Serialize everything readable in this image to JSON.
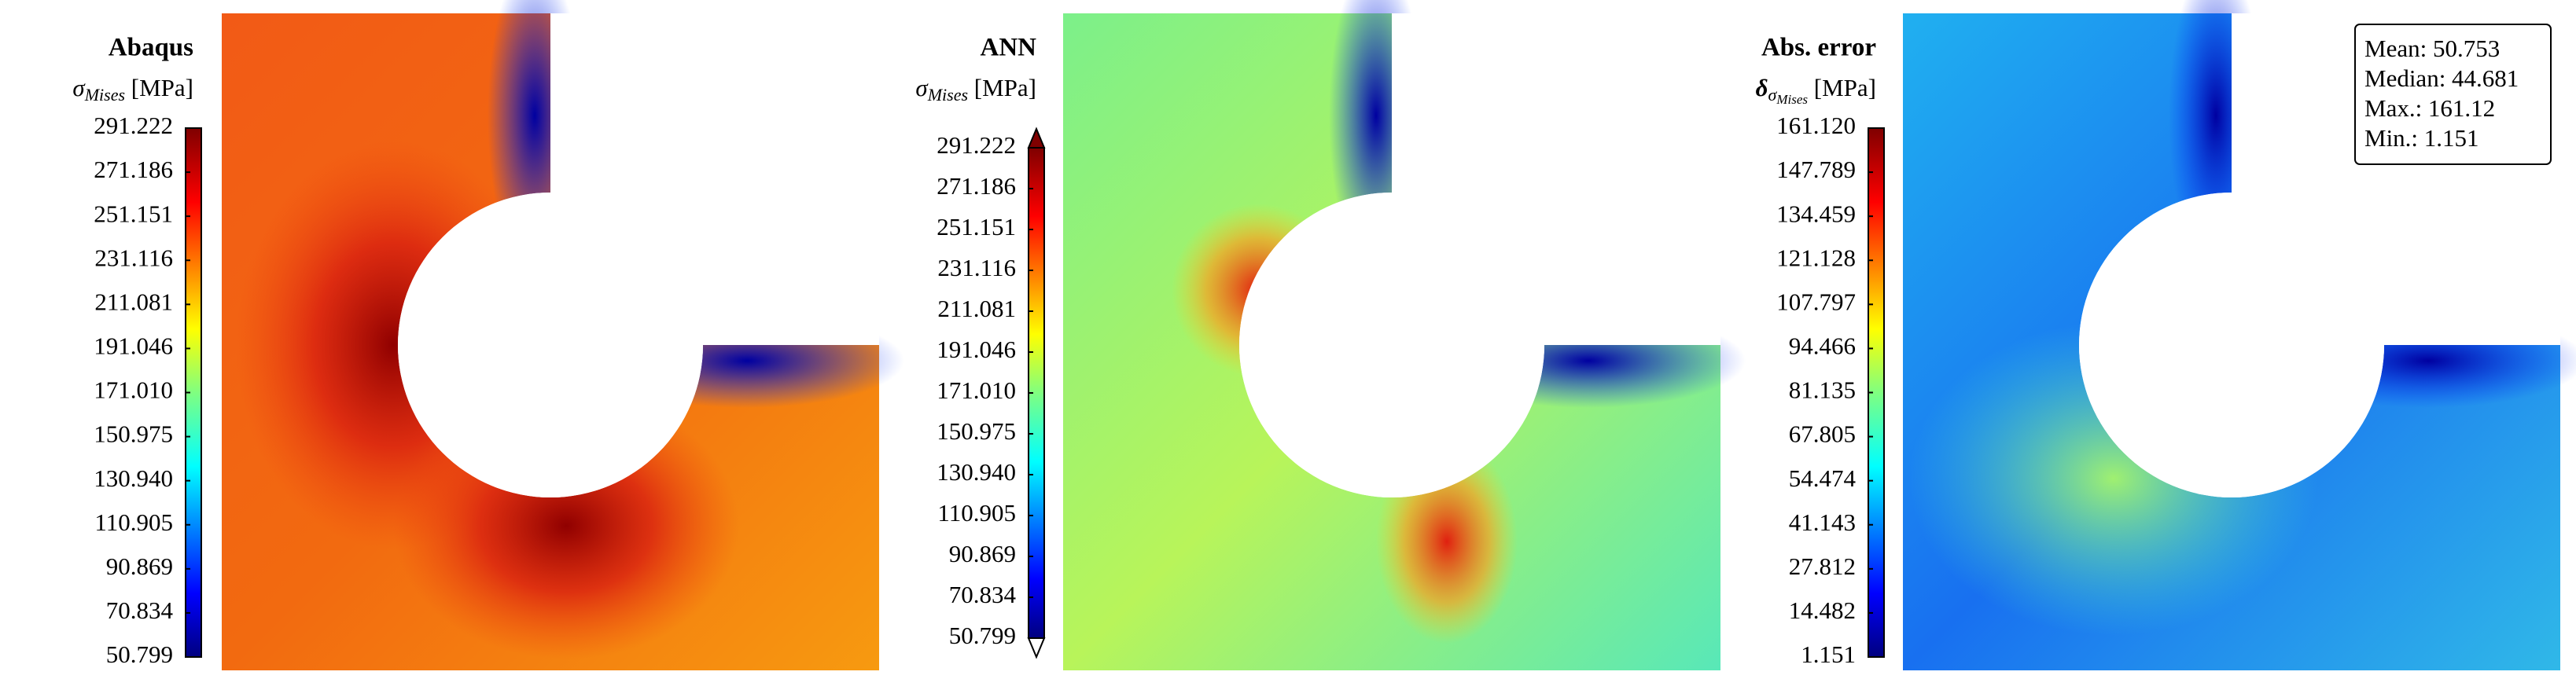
{
  "panels": [
    {
      "title": "Abaqus",
      "label": {
        "symbol": "σ",
        "subscript": "Mises",
        "unit": "[MPa]"
      },
      "ticks": [
        "291.222",
        "271.186",
        "251.151",
        "231.116",
        "211.081",
        "191.046",
        "171.010",
        "150.975",
        "130.940",
        "110.905",
        "90.869",
        "70.834",
        "50.799"
      ]
    },
    {
      "title": "ANN",
      "label": {
        "symbol": "σ",
        "subscript": "Mises",
        "unit": "[MPa]"
      },
      "ticks": [
        "291.222",
        "271.186",
        "251.151",
        "231.116",
        "211.081",
        "191.046",
        "171.010",
        "150.975",
        "130.940",
        "110.905",
        "90.869",
        "70.834",
        "50.799"
      ]
    },
    {
      "title": "Abs. error",
      "label": {
        "symbol": "δ",
        "subscript": "σ",
        "sub_subscript": "Mises",
        "unit": "[MPa]"
      },
      "ticks": [
        "161.120",
        "147.789",
        "134.459",
        "121.128",
        "107.797",
        "94.466",
        "81.135",
        "67.805",
        "54.474",
        "41.143",
        "27.812",
        "14.482",
        "1.151"
      ],
      "stats": [
        "Mean: 50.753",
        "Median: 44.681",
        "Max.: 161.12",
        "Min.: 1.151"
      ]
    }
  ]
}
